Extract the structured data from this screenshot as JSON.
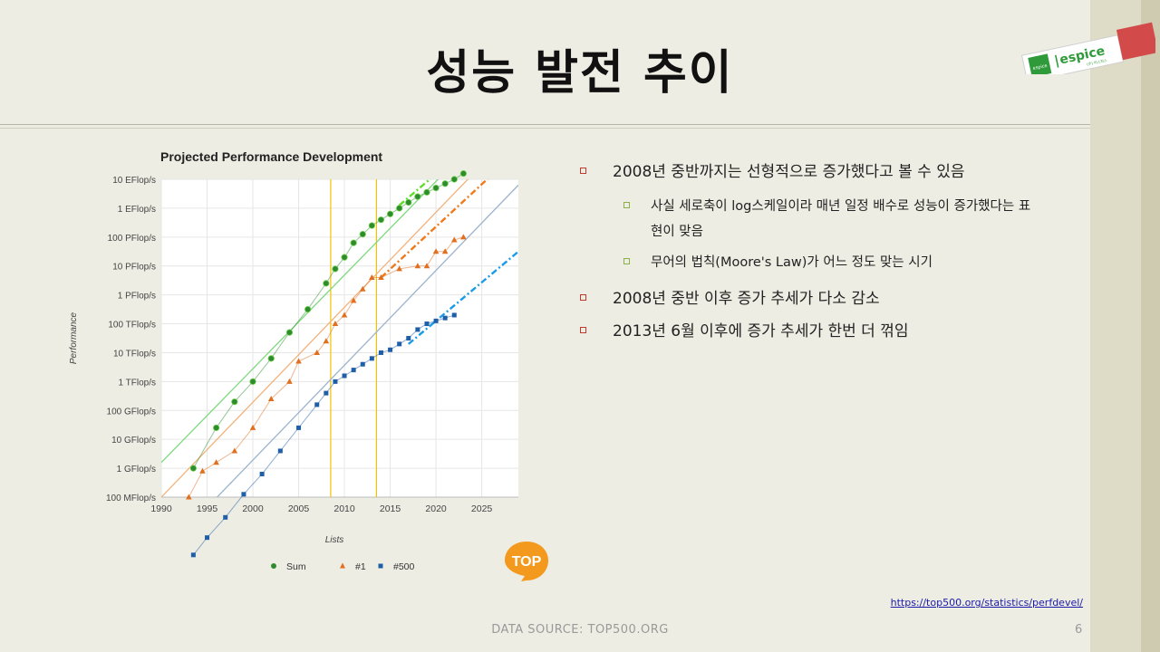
{
  "slide": {
    "title": "성능 발전 추이",
    "page_number": "6",
    "source": "DATA SOURCE: TOP500.ORG",
    "link": "https://top500.org/statistics/perfdevel/",
    "logo": {
      "brand": "espice",
      "tag": "espice",
      "sub": "(주) 이스피스"
    },
    "top_logo_text": "TOP"
  },
  "bullets": [
    {
      "text": "2008년 중반까지는 선형적으로 증가했다고 볼 수 있음",
      "sub": [
        "사실 세로축이 log스케일이라 매년 일정 배수로 성능이 증가했다는 표현이 맞음",
        "무어의 법칙(Moore's Law)가 어느 정도 맞는 시기"
      ]
    },
    {
      "text": "2008년 중반 이후 증가 추세가 다소 감소",
      "sub": []
    },
    {
      "text": "2013년 6월 이후에 증가 추세가 한번 더 꺾임",
      "sub": []
    }
  ],
  "chart_data": {
    "type": "scatter",
    "title": "Projected Performance Development",
    "xlabel": "Lists",
    "ylabel": "Performance",
    "xlim": [
      1990,
      2029
    ],
    "x_ticks": [
      1990,
      1995,
      2000,
      2005,
      2010,
      2015,
      2020,
      2025
    ],
    "y_scale": "log",
    "y_ticks": [
      "100 MFlop/s",
      "1 GFlop/s",
      "10 GFlop/s",
      "100 GFlop/s",
      "1 TFlop/s",
      "10 TFlop/s",
      "100 TFlop/s",
      "1 PFlop/s",
      "10 PFlop/s",
      "100 PFlop/s",
      "1 EFlop/s",
      "10 EFlop/s"
    ],
    "grid": true,
    "legend_position": "bottom",
    "vertical_markers": [
      2008.5,
      2013.5
    ],
    "series": [
      {
        "name": "Sum",
        "color": "#2e8b2e",
        "marker": "circle",
        "x": [
          1993.5,
          1996,
          1998,
          2000,
          2002,
          2004,
          2006,
          2008,
          2009,
          2010,
          2011,
          2012,
          2013,
          2014,
          2015,
          2016,
          2017,
          2018,
          2019,
          2020,
          2021,
          2022,
          2023
        ],
        "log10_gflops": [
          0.0,
          1.4,
          2.3,
          3.0,
          3.8,
          4.7,
          5.5,
          6.4,
          6.9,
          7.3,
          7.8,
          8.1,
          8.4,
          8.6,
          8.8,
          9.0,
          9.2,
          9.4,
          9.55,
          9.7,
          9.85,
          10.0,
          10.2
        ]
      },
      {
        "name": "#1",
        "color": "#e07020",
        "marker": "triangle",
        "x": [
          1993,
          1994.5,
          1996,
          1998,
          2000,
          2002,
          2004,
          2005,
          2007,
          2008,
          2009,
          2010,
          2011,
          2012,
          2013,
          2014,
          2016,
          2018,
          2019,
          2020,
          2021,
          2022,
          2023
        ],
        "log10_gflops": [
          -1.0,
          -0.1,
          0.2,
          0.6,
          1.4,
          2.4,
          3.0,
          3.7,
          4.0,
          4.4,
          5.0,
          5.3,
          5.8,
          6.2,
          6.6,
          6.6,
          6.9,
          7.0,
          7.0,
          7.5,
          7.5,
          7.9,
          8.0
        ]
      },
      {
        "name": "#500",
        "color": "#1f5fa8",
        "marker": "square",
        "x": [
          1993.5,
          1995,
          1997,
          1999,
          2001,
          2003,
          2005,
          2007,
          2008,
          2009,
          2010,
          2011,
          2012,
          2013,
          2014,
          2015,
          2016,
          2017,
          2018,
          2019,
          2020,
          2021,
          2022
        ],
        "log10_gflops": [
          -3.0,
          -2.4,
          -1.7,
          -0.9,
          -0.2,
          0.6,
          1.4,
          2.2,
          2.6,
          3.0,
          3.2,
          3.4,
          3.6,
          3.8,
          4.0,
          4.1,
          4.3,
          4.5,
          4.8,
          5.0,
          5.1,
          5.2,
          5.3
        ]
      }
    ],
    "trend_lines": [
      {
        "series": "Sum",
        "color": "#7ed97e",
        "x": [
          1990,
          2023
        ],
        "log10_gflops": [
          0.2,
          10.9
        ]
      },
      {
        "series": "#1",
        "color": "#f2b27a",
        "x": [
          1990,
          2025
        ],
        "log10_gflops": [
          -1.0,
          10.5
        ]
      },
      {
        "series": "#500",
        "color": "#9cb3cf",
        "x": [
          1990,
          2029
        ],
        "log10_gflops": [
          -3.0,
          9.8
        ]
      }
    ],
    "projection_lines": [
      {
        "series": "Sum",
        "color": "#5ee02a",
        "x": [
          2016,
          2023
        ],
        "log10_gflops": [
          9.1,
          11.0
        ]
      },
      {
        "series": "#1",
        "color": "#f07a1a",
        "x": [
          2014,
          2029
        ],
        "log10_gflops": [
          6.6,
          11.0
        ]
      },
      {
        "series": "#500",
        "color": "#1a9be8",
        "x": [
          2017,
          2029
        ],
        "log10_gflops": [
          4.3,
          7.5
        ]
      }
    ]
  }
}
